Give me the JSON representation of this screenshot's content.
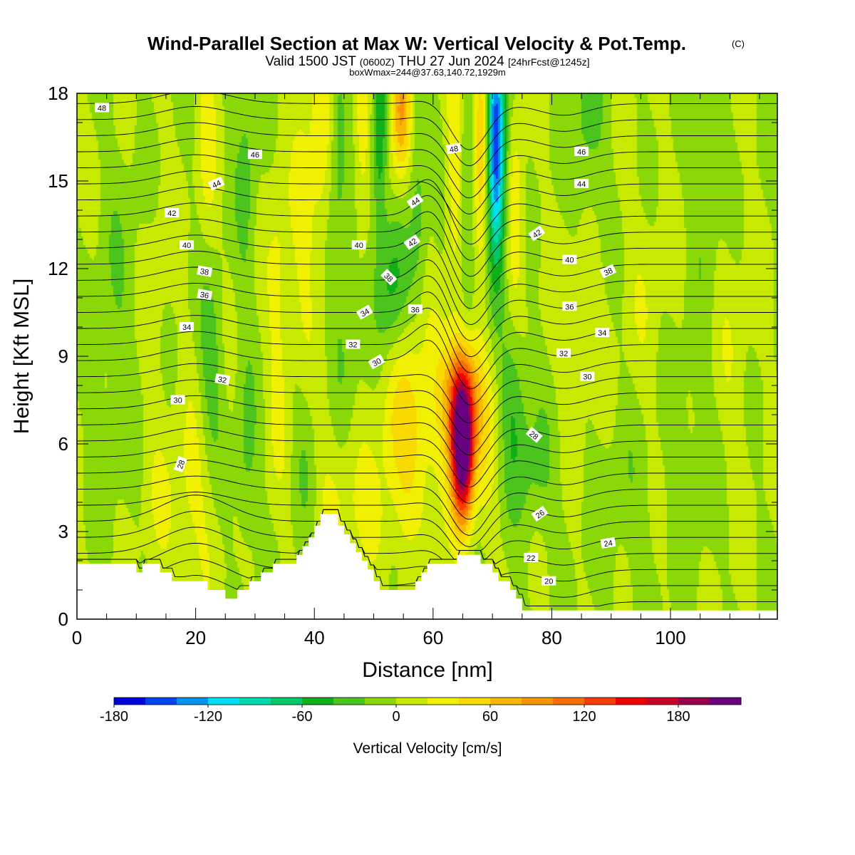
{
  "title": {
    "main": "Wind-Parallel Section at Max W: Vertical Velocity & Pot.Temp.",
    "copyright": "(C)",
    "valid_prefix": "Valid 1500 JST",
    "valid_utc": "(0600Z)",
    "valid_date": "THU 27 Jun 2024",
    "forecast": "[24hrFcst@1245z]",
    "boxinfo": "boxWmax=244@37.63,140.72,1929m"
  },
  "chart_data": {
    "type": "heatmap",
    "title": "Wind-Parallel Section at Max W: Vertical Velocity & Pot.Temp.",
    "xlabel": "Distance [nm]",
    "ylabel": "Height [Kft MSL]",
    "xlim": [
      0,
      118
    ],
    "ylim": [
      0,
      18
    ],
    "x_ticks": [
      0,
      20,
      40,
      60,
      80,
      100
    ],
    "y_ticks": [
      0,
      3,
      6,
      9,
      12,
      15,
      18
    ],
    "colorbar": {
      "label": "Vertical Velocity [cm/s]",
      "min": -180,
      "max": 220,
      "step": 20,
      "tick_values": [
        -180,
        -120,
        -60,
        0,
        60,
        120,
        180
      ],
      "colors": [
        "#0000dc",
        "#0044ee",
        "#0090ee",
        "#00e0f6",
        "#00dab0",
        "#00c86a",
        "#10b018",
        "#4cc41e",
        "#8ad808",
        "#c8ea00",
        "#f0f000",
        "#f8da00",
        "#f8b800",
        "#f89400",
        "#f86e00",
        "#f83c00",
        "#f00000",
        "#c80028",
        "#98004c",
        "#680080"
      ]
    },
    "terrain": [
      [
        0,
        1.9
      ],
      [
        9,
        1.9
      ],
      [
        10,
        1.6
      ],
      [
        11,
        1.9
      ],
      [
        13,
        1.9
      ],
      [
        14,
        1.6
      ],
      [
        15,
        1.6
      ],
      [
        16,
        1.3
      ],
      [
        21,
        1.3
      ],
      [
        22,
        1
      ],
      [
        24,
        1
      ],
      [
        25,
        0.7
      ],
      [
        26,
        0.7
      ],
      [
        27,
        1
      ],
      [
        28,
        1
      ],
      [
        29,
        1.3
      ],
      [
        30,
        1.3
      ],
      [
        31,
        1.6
      ],
      [
        32,
        1.6
      ],
      [
        33,
        1.9
      ],
      [
        36,
        1.9
      ],
      [
        37,
        2.2
      ],
      [
        38,
        2.5
      ],
      [
        39,
        2.8
      ],
      [
        40,
        3.2
      ],
      [
        41,
        3.6
      ],
      [
        43,
        3.6
      ],
      [
        44,
        3.2
      ],
      [
        45,
        2.9
      ],
      [
        46,
        2.6
      ],
      [
        47,
        2.3
      ],
      [
        48,
        2
      ],
      [
        49,
        1.7
      ],
      [
        50,
        1.3
      ],
      [
        51,
        1
      ],
      [
        56,
        1
      ],
      [
        57,
        1.3
      ],
      [
        58,
        1.6
      ],
      [
        59,
        1.9
      ],
      [
        62,
        1.9
      ],
      [
        64,
        2.2
      ],
      [
        66,
        2.2
      ],
      [
        68,
        1.9
      ],
      [
        70,
        1.6
      ],
      [
        71,
        1.3
      ],
      [
        72,
        1.3
      ],
      [
        73,
        1
      ],
      [
        74,
        0.7
      ],
      [
        75,
        0.3
      ],
      [
        118,
        0.3
      ]
    ],
    "velocity_blobs": [
      {
        "x": 65,
        "y": 5.8,
        "sx": 1.3,
        "sy": 1.7,
        "w": 235
      },
      {
        "x": 64.5,
        "y": 7.6,
        "sx": 2.2,
        "sy": 1.5,
        "w": 100
      },
      {
        "x": 56,
        "y": 6.3,
        "sx": 3.5,
        "sy": 2.6,
        "w": 50
      },
      {
        "x": 44,
        "y": 4.6,
        "sx": 3,
        "sy": 2.2,
        "w": 25
      },
      {
        "x": 20,
        "y": 4.2,
        "sx": 2.8,
        "sy": 2.5,
        "w": 25
      },
      {
        "x": 14.5,
        "y": 3.5,
        "sx": 2.5,
        "sy": 1.8,
        "w": 12
      },
      {
        "x": 69,
        "y": 6.5,
        "sx": 1.5,
        "sy": 2.5,
        "w": 25
      },
      {
        "x": 22.5,
        "y": 8.6,
        "sx": 1.5,
        "sy": 2.6,
        "w": -35
      },
      {
        "x": 28.5,
        "y": 5.2,
        "sx": 1.3,
        "sy": 2.2,
        "w": -25
      },
      {
        "x": 38.5,
        "y": 5.8,
        "sx": 1.5,
        "sy": 2,
        "w": -20
      },
      {
        "x": 45,
        "y": 10,
        "sx": 1.8,
        "sy": 3,
        "w": -25
      },
      {
        "x": 53,
        "y": 11.5,
        "sx": 1.8,
        "sy": 1.8,
        "w": -50
      },
      {
        "x": 73.5,
        "y": 7.8,
        "sx": 1.5,
        "sy": 2.2,
        "w": -40
      },
      {
        "x": 77,
        "y": 5,
        "sx": 2.5,
        "sy": 1.7,
        "w": -25
      },
      {
        "x": 70.5,
        "y": 16.5,
        "sx": 1,
        "sy": 2.8,
        "w": -150
      },
      {
        "x": 72,
        "y": 15,
        "sx": 1.2,
        "sy": 2.5,
        "w": -45
      },
      {
        "x": 68,
        "y": 16.5,
        "sx": 1,
        "sy": 2.8,
        "w": 70
      },
      {
        "x": 73.5,
        "y": 13.8,
        "sx": 1.2,
        "sy": 2.6,
        "w": 50
      },
      {
        "x": 66,
        "y": 13.5,
        "sx": 1,
        "sy": 3,
        "w": -35
      },
      {
        "x": 63.5,
        "y": 15.5,
        "sx": 1,
        "sy": 3,
        "w": 35
      },
      {
        "x": 54.5,
        "y": 17.5,
        "sx": 1.2,
        "sy": 1.6,
        "w": 90
      },
      {
        "x": 51,
        "y": 16.8,
        "sx": 0.9,
        "sy": 2.5,
        "w": -60
      },
      {
        "x": 48,
        "y": 17,
        "sx": 1,
        "sy": 2.5,
        "w": 40
      },
      {
        "x": 57.5,
        "y": 15.5,
        "sx": 1,
        "sy": 3,
        "w": -30
      },
      {
        "x": 41,
        "y": 16.5,
        "sx": 1.3,
        "sy": 3.5,
        "w": 35
      },
      {
        "x": 44,
        "y": 17,
        "sx": 1,
        "sy": 2.5,
        "w": -30
      },
      {
        "x": 38,
        "y": 13,
        "sx": 1.3,
        "sy": 3.5,
        "w": 25
      },
      {
        "x": 34,
        "y": 10.5,
        "sx": 1.4,
        "sy": 4,
        "w": 28
      },
      {
        "x": 28.5,
        "y": 15.5,
        "sx": 1.2,
        "sy": 3.5,
        "w": -25
      },
      {
        "x": 22,
        "y": 16,
        "sx": 1.2,
        "sy": 3,
        "w": 25
      },
      {
        "x": 86,
        "y": 16.8,
        "sx": 2,
        "sy": 2.5,
        "w": -28
      },
      {
        "x": 106,
        "y": 16,
        "sx": 2,
        "sy": 3,
        "w": -25
      },
      {
        "x": 84,
        "y": 10,
        "sx": 3,
        "sy": 2.5,
        "w": 15
      },
      {
        "x": 96,
        "y": 11,
        "sx": 3,
        "sy": 3,
        "w": 12
      },
      {
        "x": 110,
        "y": 9,
        "sx": 3,
        "sy": 4,
        "w": 12
      },
      {
        "x": 92,
        "y": 4,
        "sx": 4,
        "sy": 2.5,
        "w": -12
      },
      {
        "x": 104,
        "y": 6,
        "sx": 3,
        "sy": 3,
        "w": -14
      },
      {
        "x": 6,
        "y": 8,
        "sx": 3,
        "sy": 3,
        "w": -12
      },
      {
        "x": 8,
        "y": 13,
        "sx": 3,
        "sy": 3,
        "w": -10
      },
      {
        "x": 13,
        "y": 11,
        "sx": 2,
        "sy": 4,
        "w": 12
      },
      {
        "x": 57,
        "y": 2,
        "sx": 1.5,
        "sy": 0.6,
        "w": -15
      },
      {
        "x": 50,
        "y": 3,
        "sx": 2,
        "sy": 1.2,
        "w": 18
      }
    ],
    "theta_labels": [
      {
        "text": "48",
        "x": 4.2,
        "y": 17.5,
        "angle": 0
      },
      {
        "text": "46",
        "x": 30,
        "y": 15.9,
        "angle": 0
      },
      {
        "text": "44",
        "x": 23.5,
        "y": 14.9,
        "angle": -25
      },
      {
        "text": "42",
        "x": 16,
        "y": 13.9,
        "angle": 0
      },
      {
        "text": "40",
        "x": 18.5,
        "y": 12.8,
        "angle": 0
      },
      {
        "text": "38",
        "x": 21.5,
        "y": 11.9,
        "angle": 10
      },
      {
        "text": "36",
        "x": 21.5,
        "y": 11.1,
        "angle": 10
      },
      {
        "text": "34",
        "x": 18.5,
        "y": 10,
        "angle": 0
      },
      {
        "text": "32",
        "x": 24.5,
        "y": 8.2,
        "angle": 10
      },
      {
        "text": "30",
        "x": 17,
        "y": 7.5,
        "angle": 0
      },
      {
        "text": "28",
        "x": 17.5,
        "y": 5.3,
        "angle": -70
      },
      {
        "text": "40",
        "x": 47.5,
        "y": 12.8,
        "angle": 0
      },
      {
        "text": "42",
        "x": 56.5,
        "y": 12.9,
        "angle": -35
      },
      {
        "text": "44",
        "x": 57,
        "y": 14.3,
        "angle": -35
      },
      {
        "text": "48",
        "x": 63.5,
        "y": 16.1,
        "angle": -10
      },
      {
        "text": "38",
        "x": 52.5,
        "y": 11.7,
        "angle": 45
      },
      {
        "text": "34",
        "x": 48.5,
        "y": 10.5,
        "angle": -30
      },
      {
        "text": "36",
        "x": 57,
        "y": 10.6,
        "angle": 0
      },
      {
        "text": "32",
        "x": 46.5,
        "y": 9.4,
        "angle": 0
      },
      {
        "text": "30",
        "x": 50.5,
        "y": 8.8,
        "angle": -30
      },
      {
        "text": "46",
        "x": 85,
        "y": 16,
        "angle": 0
      },
      {
        "text": "44",
        "x": 85,
        "y": 14.9,
        "angle": 0
      },
      {
        "text": "42",
        "x": 77.5,
        "y": 13.2,
        "angle": -35
      },
      {
        "text": "40",
        "x": 83,
        "y": 12.3,
        "angle": 0
      },
      {
        "text": "38",
        "x": 89.5,
        "y": 11.9,
        "angle": -25
      },
      {
        "text": "36",
        "x": 83,
        "y": 10.7,
        "angle": 0
      },
      {
        "text": "34",
        "x": 88.5,
        "y": 9.8,
        "angle": 0
      },
      {
        "text": "32",
        "x": 82,
        "y": 9.1,
        "angle": 0
      },
      {
        "text": "30",
        "x": 86,
        "y": 8.3,
        "angle": 0
      },
      {
        "text": "28",
        "x": 77,
        "y": 6.3,
        "angle": 40
      },
      {
        "text": "26",
        "x": 78,
        "y": 3.6,
        "angle": -35
      },
      {
        "text": "24",
        "x": 89.5,
        "y": 2.6,
        "angle": -10
      },
      {
        "text": "22",
        "x": 76.5,
        "y": 2.1,
        "angle": 0
      },
      {
        "text": "20",
        "x": 79.5,
        "y": 1.3,
        "angle": 0
      }
    ]
  }
}
